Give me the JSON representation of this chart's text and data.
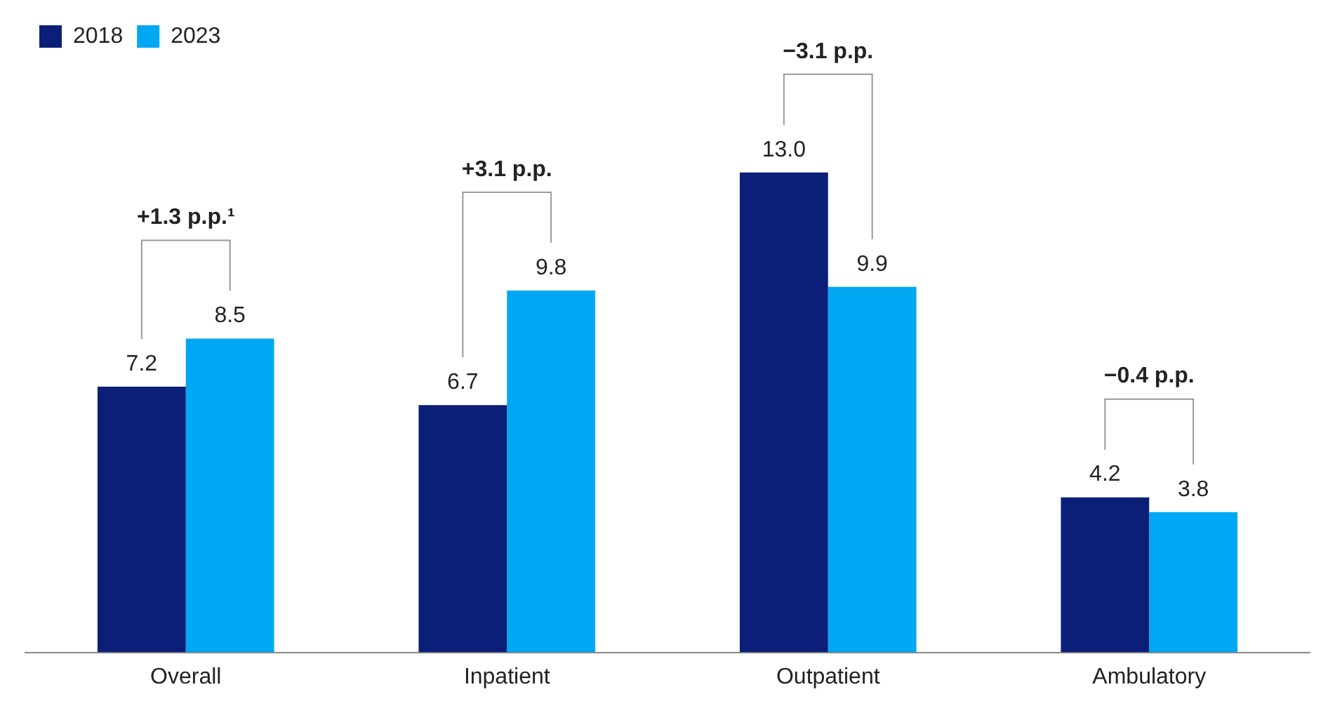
{
  "chart_data": {
    "type": "bar",
    "categories": [
      "Overall",
      "Inpatient",
      "Outpatient",
      "Ambulatory"
    ],
    "series": [
      {
        "name": "2018",
        "color": "#0b1f78",
        "values": [
          7.2,
          6.7,
          13.0,
          4.2
        ],
        "value_labels": [
          "7.2",
          "6.7",
          "13.0",
          "4.2"
        ]
      },
      {
        "name": "2023",
        "color": "#00a8f3",
        "values": [
          8.5,
          9.8,
          9.9,
          3.8
        ],
        "value_labels": [
          "8.5",
          "9.8",
          "9.9",
          "3.8"
        ]
      }
    ],
    "tick_labels": "x",
    "legend": "top left",
    "grid": false,
    "annotations": [
      "+1.3 p.p.¹",
      "+3.1 p.p.",
      "−3.1 p.p.",
      "−0.4 p.p."
    ]
  }
}
